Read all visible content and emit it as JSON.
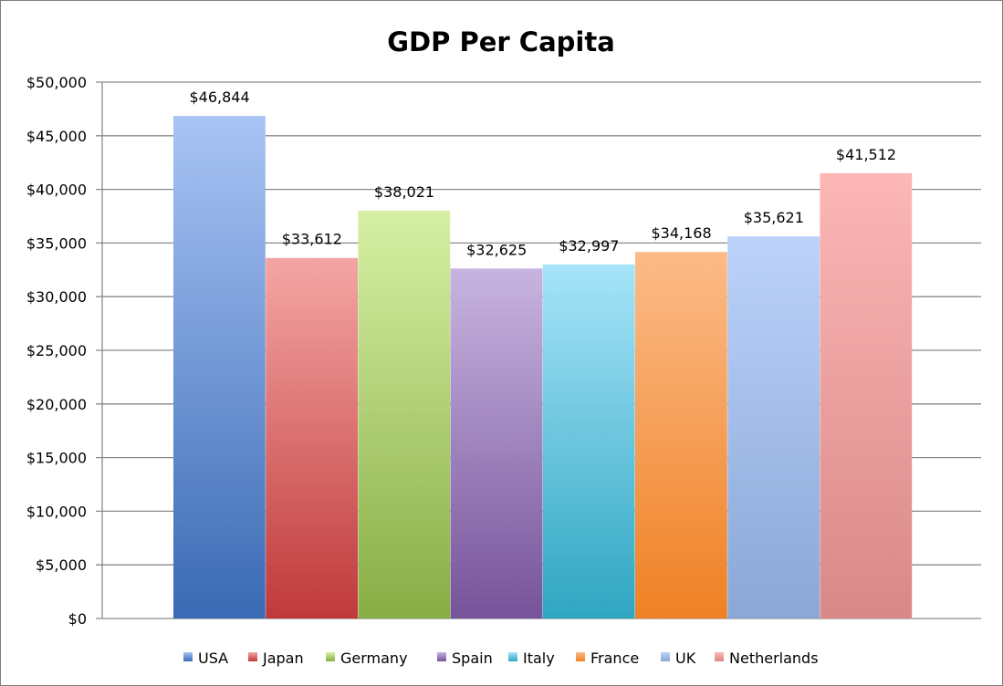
{
  "chart_data": {
    "type": "bar",
    "title": "GDP Per Capita",
    "categories": [
      "USA",
      "Japan",
      "Germany",
      "Spain",
      "Italy",
      "France",
      "UK",
      "Netherlands"
    ],
    "values": [
      46844,
      33612,
      38021,
      32625,
      32997,
      34168,
      35621,
      41512
    ],
    "data_labels": [
      "$46,844",
      "$33,612",
      "$38,021",
      "$32,625",
      "$32,997",
      "$34,168",
      "$35,621",
      "$41,512"
    ],
    "y_ticks": [
      "$0",
      "$5,000",
      "$10,000",
      "$15,000",
      "$20,000",
      "$25,000",
      "$30,000",
      "$35,000",
      "$40,000",
      "$45,000",
      "$50,000"
    ],
    "ylim": [
      0,
      50000
    ],
    "grid": true,
    "legend_position": "bottom",
    "colors": [
      {
        "top": "#a9c4f5",
        "bottom": "#3a6ab4"
      },
      {
        "top": "#f4a6a4",
        "bottom": "#c0393a"
      },
      {
        "top": "#d6f0a4",
        "bottom": "#88ad45"
      },
      {
        "top": "#c8b4e0",
        "bottom": "#76539a"
      },
      {
        "top": "#a6e4f9",
        "bottom": "#2fa6c1"
      },
      {
        "top": "#fcbb88",
        "bottom": "#ef8124"
      },
      {
        "top": "#bcd2fa",
        "bottom": "#8aa7d6"
      },
      {
        "top": "#fcb7b6",
        "bottom": "#d98887"
      }
    ]
  }
}
